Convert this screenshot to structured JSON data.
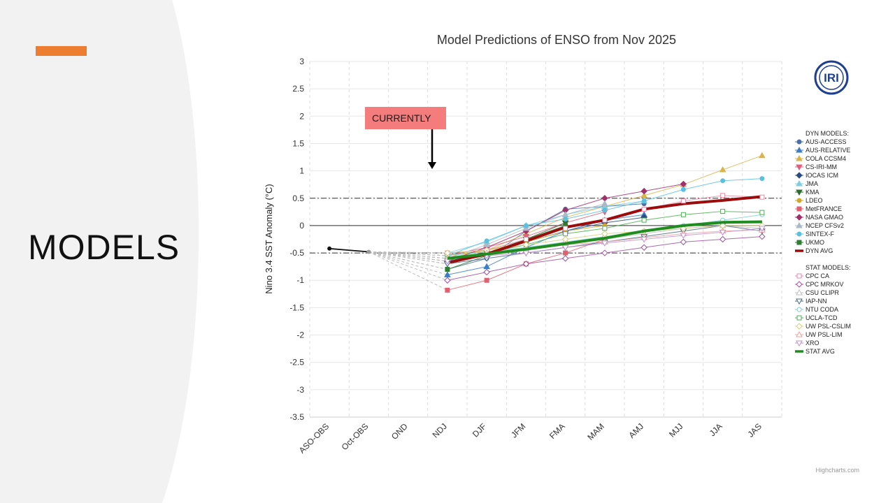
{
  "slide": {
    "title": "MODELS",
    "accent_color": "#ed7d31",
    "panel_color": "#f2f2f2"
  },
  "callout": {
    "label": "CURRENTLY",
    "color": "#f47c7c"
  },
  "logo": {
    "text": "IRI",
    "color": "#1f3f8f"
  },
  "credit": "Highcharts.com",
  "chart_data": {
    "type": "line",
    "title": "Model Predictions of ENSO from Nov 2025",
    "xlabel": "",
    "ylabel": "Nino 3.4 SST Anomaly (°C)",
    "ylim": [
      -3.5,
      3
    ],
    "yticks": [
      3,
      2.5,
      2,
      1.5,
      1,
      0.5,
      0,
      -0.5,
      -1,
      -1.5,
      -2,
      -2.5,
      -3,
      -3.5
    ],
    "ytick_labels": [
      "3",
      "2.5",
      "2",
      "1.5",
      "1",
      "0.5",
      "0",
      "-0.5",
      "-1",
      "-1.5",
      "-2",
      "-2.5",
      "-3",
      "-3.5"
    ],
    "categories": [
      "ASO-OBS",
      "Oct-OBS",
      "OND",
      "NDJ",
      "DJF",
      "JFM",
      "FMA",
      "MAM",
      "AMJ",
      "MJJ",
      "JJA",
      "JAS"
    ],
    "thresholds": [
      0.5,
      -0.5
    ],
    "observed": {
      "name": "OBS",
      "values": [
        -0.42,
        -0.48
      ],
      "color": "#111111"
    },
    "legend_dyn_header": "DYN MODELS:",
    "legend_stat_header": "STAT MODELS:",
    "series": [
      {
        "name": "AUS-ACCESS",
        "group": "dyn",
        "color": "#4a6fa5",
        "marker": "circle",
        "values": [
          null,
          null,
          null,
          -0.8,
          -0.6,
          -0.1,
          0.3,
          0.35,
          0.4,
          null,
          null,
          null
        ]
      },
      {
        "name": "AUS-RELATIVE",
        "group": "dyn",
        "color": "#3c7cc4",
        "marker": "triangle",
        "values": [
          null,
          null,
          null,
          -0.9,
          -0.75,
          -0.4,
          -0.1,
          0.1,
          0.2,
          null,
          null,
          null
        ]
      },
      {
        "name": "COLA CCSM4",
        "group": "dyn",
        "color": "#d9b44a",
        "marker": "triangle",
        "values": [
          null,
          null,
          null,
          -0.6,
          -0.45,
          -0.15,
          0.15,
          0.35,
          0.55,
          0.75,
          1.02,
          1.28
        ]
      },
      {
        "name": "CS-IRI-MM",
        "group": "dyn",
        "color": "#e0607e",
        "marker": "triangle-down",
        "values": [
          null,
          null,
          null,
          -0.55,
          -0.4,
          -0.2,
          0.05,
          0.25,
          null,
          null,
          null,
          null
        ]
      },
      {
        "name": "IOCAS ICM",
        "group": "dyn",
        "color": "#2b4c7e",
        "marker": "diamond",
        "values": [
          null,
          null,
          null,
          -0.65,
          -0.5,
          -0.3,
          -0.1,
          0.05,
          0.15,
          null,
          null,
          null
        ]
      },
      {
        "name": "JMA",
        "group": "dyn",
        "color": "#7dcfe0",
        "marker": "triangle",
        "values": [
          null,
          null,
          null,
          -0.5,
          -0.3,
          0.0,
          0.2,
          0.35,
          0.45,
          null,
          null,
          null
        ]
      },
      {
        "name": "KMA",
        "group": "dyn",
        "color": "#2e6b2e",
        "marker": "triangle-down",
        "values": [
          null,
          null,
          null,
          -0.7,
          -0.5,
          -0.25,
          0.05,
          null,
          null,
          null,
          null,
          null
        ]
      },
      {
        "name": "LDEO",
        "group": "dyn",
        "color": "#d4a82a",
        "marker": "circle",
        "values": [
          null,
          null,
          null,
          -0.55,
          -0.45,
          -0.3,
          -0.1,
          0.0,
          null,
          null,
          null,
          null
        ]
      },
      {
        "name": "MetFRANCE",
        "group": "dyn",
        "color": "#e06070",
        "marker": "square",
        "values": [
          null,
          null,
          null,
          -1.18,
          -1.0,
          -0.7,
          -0.5,
          -0.25,
          null,
          null,
          null,
          null
        ]
      },
      {
        "name": "NASA GMAO",
        "group": "dyn",
        "color": "#a0306a",
        "marker": "diamond",
        "values": [
          null,
          null,
          null,
          -0.65,
          -0.4,
          -0.1,
          0.28,
          0.5,
          0.63,
          0.76,
          null,
          null
        ]
      },
      {
        "name": "NCEP CFSv2",
        "group": "dyn",
        "color": "#aab8c8",
        "marker": "triangle",
        "values": [
          null,
          null,
          null,
          -0.6,
          -0.35,
          -0.05,
          0.2,
          0.4,
          null,
          null,
          null,
          null
        ]
      },
      {
        "name": "SINTEX-F",
        "group": "dyn",
        "color": "#5bc0de",
        "marker": "circle",
        "values": [
          null,
          null,
          null,
          -0.55,
          -0.28,
          0.0,
          0.12,
          0.28,
          0.45,
          0.66,
          0.82,
          0.86
        ]
      },
      {
        "name": "UKMO",
        "group": "dyn",
        "color": "#2e7d32",
        "marker": "square",
        "values": [
          null,
          null,
          null,
          -0.8,
          -0.55,
          -0.25,
          0.0,
          null,
          null,
          null,
          null,
          null
        ]
      },
      {
        "name": "DYN AVG",
        "group": "dyn",
        "color": "#9b0d0d",
        "marker": "none",
        "avg": true,
        "values": [
          null,
          null,
          null,
          -0.68,
          -0.52,
          -0.28,
          -0.03,
          0.1,
          0.3,
          0.4,
          0.46,
          0.53
        ]
      },
      {
        "name": "CPC CA",
        "group": "stat",
        "color": "#e88aa5",
        "marker": "square-open",
        "values": [
          null,
          null,
          null,
          -0.5,
          -0.45,
          -0.25,
          -0.05,
          0.1,
          0.3,
          0.45,
          0.55,
          0.52
        ]
      },
      {
        "name": "CPC MRKOV",
        "group": "stat",
        "color": "#a050a0",
        "marker": "diamond-open",
        "values": [
          null,
          null,
          null,
          -1.0,
          -0.85,
          -0.7,
          -0.6,
          -0.5,
          -0.4,
          -0.3,
          -0.25,
          -0.2
        ]
      },
      {
        "name": "CSU CLIPR",
        "group": "stat",
        "color": "#c0c0c0",
        "marker": "triangle-open",
        "values": [
          null,
          null,
          null,
          -0.65,
          -0.55,
          -0.45,
          -0.35,
          -0.25,
          -0.15,
          -0.05,
          0.0,
          -0.05
        ]
      },
      {
        "name": "IAP-NN",
        "group": "stat",
        "color": "#4a6a8a",
        "marker": "triangle-down-open",
        "values": [
          null,
          null,
          null,
          -0.7,
          -0.6,
          -0.5,
          -0.4,
          -0.3,
          -0.2,
          -0.1,
          0.0,
          -0.1
        ]
      },
      {
        "name": "NTU CODA",
        "group": "stat",
        "color": "#80d0d0",
        "marker": "circle-open",
        "values": [
          null,
          null,
          null,
          -0.55,
          -0.48,
          -0.4,
          -0.3,
          -0.2,
          -0.1,
          0.0,
          0.1,
          0.2
        ]
      },
      {
        "name": "UCLA-TCD",
        "group": "stat",
        "color": "#4caf50",
        "marker": "square-open",
        "values": [
          null,
          null,
          null,
          -0.6,
          -0.5,
          -0.35,
          -0.15,
          -0.05,
          0.1,
          0.2,
          0.26,
          0.24
        ]
      },
      {
        "name": "UW PSL-CSLIM",
        "group": "stat",
        "color": "#d8d080",
        "marker": "diamond-open",
        "values": [
          null,
          null,
          null,
          -0.5,
          -0.45,
          -0.35,
          -0.25,
          -0.15,
          -0.1,
          -0.05,
          0.0,
          0.0
        ]
      },
      {
        "name": "UW PSL-LIM",
        "group": "stat",
        "color": "#f0a0a0",
        "marker": "triangle-open",
        "values": [
          null,
          null,
          null,
          -0.6,
          -0.5,
          -0.45,
          -0.35,
          -0.3,
          -0.22,
          -0.15,
          -0.1,
          -0.08
        ]
      },
      {
        "name": "XRO",
        "group": "stat",
        "color": "#c090d0",
        "marker": "triangle-down-open",
        "values": [
          null,
          null,
          null,
          -0.65,
          -0.55,
          -0.5,
          -0.4,
          -0.32,
          -0.25,
          -0.18,
          -0.12,
          -0.05
        ]
      },
      {
        "name": "STAT AVG",
        "group": "stat",
        "color": "#1e8c1e",
        "marker": "none",
        "avg": true,
        "values": [
          null,
          null,
          null,
          -0.6,
          -0.52,
          -0.43,
          -0.33,
          -0.23,
          -0.1,
          0.0,
          0.06,
          0.07
        ]
      }
    ]
  }
}
